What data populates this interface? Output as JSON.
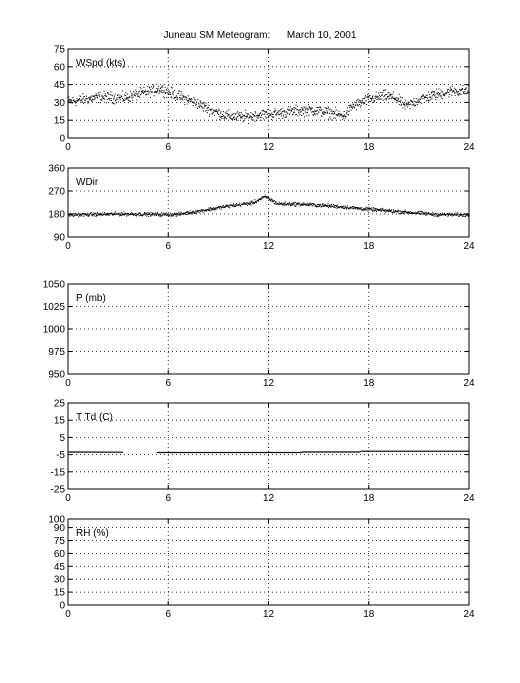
{
  "title": "Juneau SM Meteogram:      March 10, 2001",
  "chart_data": [
    {
      "type": "scatter",
      "label": "WSpd (kts)",
      "xlim": [
        0,
        24
      ],
      "ylim": [
        0,
        75
      ],
      "x_ticks": [
        0,
        6,
        12,
        18,
        24
      ],
      "y_ticks": [
        0,
        15,
        30,
        45,
        60,
        75
      ],
      "grid": true,
      "trend": [
        [
          0.0,
          31
        ],
        [
          1.0,
          33
        ],
        [
          2.0,
          35
        ],
        [
          3.3,
          34
        ],
        [
          5.5,
          42
        ],
        [
          6.5,
          36
        ],
        [
          7.5,
          31
        ],
        [
          8.5,
          24
        ],
        [
          9.5,
          19
        ],
        [
          10.5,
          18
        ],
        [
          11.5,
          20
        ],
        [
          12.5,
          21
        ],
        [
          13.5,
          23
        ],
        [
          14.5,
          24
        ],
        [
          15.5,
          22
        ],
        [
          16.5,
          19
        ],
        [
          17.0,
          27
        ],
        [
          18.0,
          33
        ],
        [
          19.0,
          36
        ],
        [
          19.6,
          34
        ],
        [
          20.2,
          27
        ],
        [
          21.0,
          33
        ],
        [
          22.0,
          37
        ],
        [
          23.0,
          40
        ],
        [
          24.0,
          40
        ]
      ],
      "spread": 4.5
    },
    {
      "type": "scatter",
      "label": "WDir",
      "xlim": [
        0,
        24
      ],
      "ylim": [
        90,
        360
      ],
      "x_ticks": [
        0,
        6,
        12,
        18,
        24
      ],
      "y_ticks": [
        90,
        180,
        270,
        360
      ],
      "grid": true,
      "trend": [
        [
          0.0,
          178
        ],
        [
          1.5,
          180
        ],
        [
          3.3,
          182
        ],
        [
          5.4,
          180
        ],
        [
          6.5,
          180
        ],
        [
          8.0,
          195
        ],
        [
          9.5,
          212
        ],
        [
          11.0,
          225
        ],
        [
          11.8,
          250
        ],
        [
          12.5,
          222
        ],
        [
          14.0,
          220
        ],
        [
          16.0,
          212
        ],
        [
          18.0,
          200
        ],
        [
          20.0,
          190
        ],
        [
          22.0,
          180
        ],
        [
          24.0,
          178
        ]
      ],
      "spread": 7
    },
    {
      "type": "scatter",
      "label": "P (mb)",
      "xlim": [
        0,
        24
      ],
      "ylim": [
        950,
        1050
      ],
      "x_ticks": [
        0,
        6,
        12,
        18,
        24
      ],
      "y_ticks": [
        950,
        975,
        1000,
        1025,
        1050
      ],
      "grid": true,
      "trend": [],
      "spread": 0
    },
    {
      "type": "line",
      "label": "T Td (C)",
      "xlim": [
        0,
        24
      ],
      "ylim": [
        -25,
        25
      ],
      "x_ticks": [
        0,
        6,
        12,
        18,
        24
      ],
      "y_ticks": [
        -25,
        -15,
        -5,
        5,
        15,
        25
      ],
      "grid": true,
      "segments": [
        [
          [
            0.0,
            -3.5
          ],
          [
            3.3,
            -3.6
          ]
        ],
        [
          [
            5.3,
            -3.8
          ],
          [
            14.0,
            -3.8
          ]
        ],
        [
          [
            14.0,
            -3.5
          ],
          [
            17.5,
            -3.5
          ]
        ],
        [
          [
            17.5,
            -3.0
          ],
          [
            24.0,
            -3.0
          ]
        ]
      ]
    },
    {
      "type": "scatter",
      "label": "RH (%)",
      "xlim": [
        0,
        24
      ],
      "ylim": [
        0,
        100
      ],
      "x_ticks": [
        0,
        6,
        12,
        18,
        24
      ],
      "y_ticks": [
        0,
        15,
        30,
        45,
        60,
        75,
        90,
        100
      ],
      "grid": true,
      "trend": [],
      "spread": 0
    }
  ]
}
